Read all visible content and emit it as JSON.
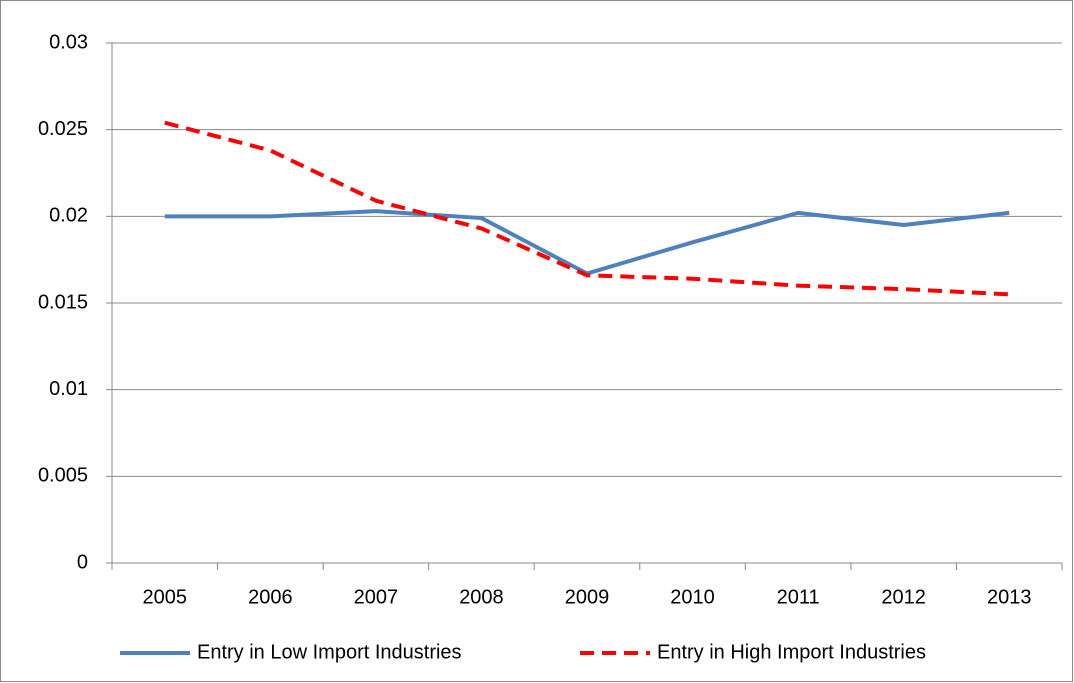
{
  "chart_data": {
    "type": "line",
    "categories": [
      "2005",
      "2006",
      "2007",
      "2008",
      "2009",
      "2010",
      "2011",
      "2012",
      "2013"
    ],
    "series": [
      {
        "name": "Entry in Low Import Industries",
        "color": "#4f81bd",
        "dash": false,
        "values": [
          0.02,
          0.02,
          0.0203,
          0.0199,
          0.0167,
          0.0185,
          0.0202,
          0.0195,
          0.0202
        ]
      },
      {
        "name": "Entry in High Import Industries",
        "color": "#ff0000",
        "dash": true,
        "values": [
          0.0254,
          0.0238,
          0.0209,
          0.0193,
          0.0166,
          0.0164,
          0.016,
          0.0158,
          0.0155
        ]
      }
    ],
    "ylim": [
      0,
      0.03
    ],
    "yticks": [
      0,
      0.005,
      0.01,
      0.015,
      0.02,
      0.025,
      0.03
    ],
    "grid": true,
    "legend": "bottom"
  }
}
